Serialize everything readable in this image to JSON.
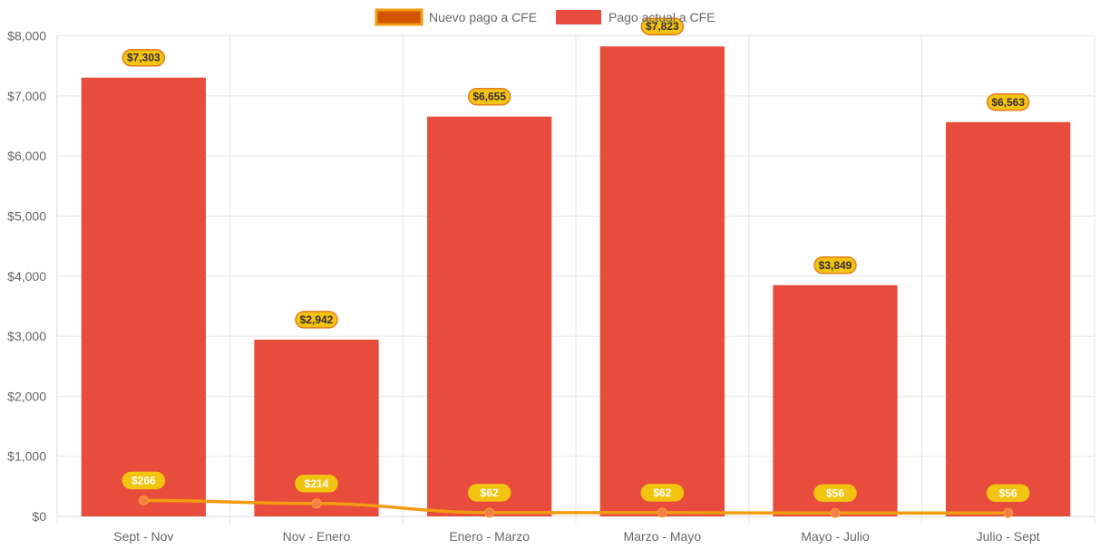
{
  "chart_data": {
    "type": "bar",
    "categories": [
      "Sept - Nov",
      "Nov - Enero",
      "Enero - Marzo",
      "Marzo - Mayo",
      "Mayo - Julio",
      "Julio - Sept"
    ],
    "series": [
      {
        "name": "Nuevo pago a CFE",
        "type": "line",
        "values": [
          266,
          214,
          62,
          62,
          56,
          56
        ],
        "labels": [
          "$266",
          "$214",
          "$62",
          "$62",
          "$56",
          "$56"
        ],
        "color": "#f39c12",
        "fill": "#d35400"
      },
      {
        "name": "Pago actual a CFE",
        "type": "bar",
        "values": [
          7303,
          2942,
          6655,
          7823,
          3849,
          6563
        ],
        "labels": [
          "$7,303",
          "$2,942",
          "$6,655",
          "$7,823",
          "$3,849",
          "$6,563"
        ],
        "color": "#e74c3c"
      }
    ],
    "y_ticks": [
      "$0",
      "$1,000",
      "$2,000",
      "$3,000",
      "$4,000",
      "$5,000",
      "$6,000",
      "$7,000",
      "$8,000"
    ],
    "ylim": [
      0,
      8000
    ],
    "grid": true,
    "legend": "top-center"
  },
  "colors": {
    "bar": "#e74c3c",
    "line": "#f39c12",
    "label_bg": "#f1c40f",
    "bar_label_border": "#e67e22",
    "bar_label_text": "#3a2a40",
    "line_label_text": "#ffffff",
    "grid": "#e5e5e5",
    "axis_text": "#666666"
  }
}
